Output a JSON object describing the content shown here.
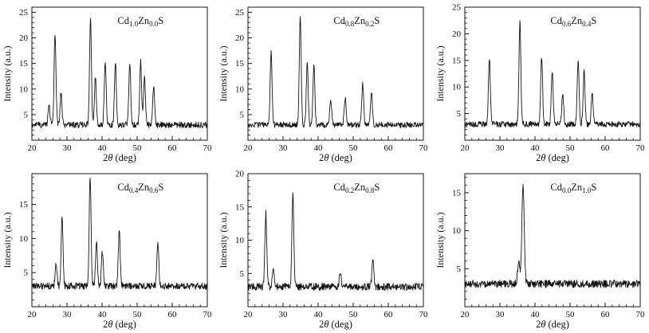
{
  "page": {
    "background": "#ffffff",
    "line_color": "#141414"
  },
  "axes": {
    "xlabel": "2θ (deg)",
    "xlabel_parts": {
      "pre": "2",
      "theta": "θ",
      "post": "(deg)"
    },
    "ylabel": "Intensity (a.u.)"
  },
  "chart_data": [
    {
      "type": "line",
      "title": "Cd1.0Zn0.0S",
      "label_parts": {
        "el1": "Cd",
        "sub1": "1.0",
        "el2": "Zn",
        "sub2": "0.0",
        "el3": "S"
      },
      "xlabel": "2θ (deg)",
      "ylabel": "Intensity (a.u.)",
      "xlim": [
        20,
        70
      ],
      "ylim": [
        0,
        26
      ],
      "xticks": [
        20,
        30,
        40,
        50,
        60,
        70
      ],
      "yticks": [
        5,
        10,
        15,
        20,
        25
      ],
      "baseline": 3.0,
      "noise_amp": 0.6,
      "peak_sigma": 0.27,
      "peaks": [
        {
          "two_theta": 24.9,
          "intensity": 6.5
        },
        {
          "two_theta": 26.6,
          "intensity": 21.0
        },
        {
          "two_theta": 28.3,
          "intensity": 9.0
        },
        {
          "two_theta": 36.7,
          "intensity": 23.5
        },
        {
          "two_theta": 38.1,
          "intensity": 12.5
        },
        {
          "two_theta": 40.9,
          "intensity": 15.5
        },
        {
          "two_theta": 43.8,
          "intensity": 15.2
        },
        {
          "two_theta": 47.9,
          "intensity": 15.0
        },
        {
          "two_theta": 51.0,
          "intensity": 15.4
        },
        {
          "two_theta": 52.1,
          "intensity": 12.0
        },
        {
          "two_theta": 54.7,
          "intensity": 10.5
        }
      ]
    },
    {
      "type": "line",
      "title": "Cd0.8Zn0.2S",
      "label_parts": {
        "el1": "Cd",
        "sub1": "0.8",
        "el2": "Zn",
        "sub2": "0.2",
        "el3": "S"
      },
      "xlabel": "2θ (deg)",
      "ylabel": "Intensity (a.u.)",
      "xlim": [
        20,
        70
      ],
      "ylim": [
        0,
        26
      ],
      "xticks": [
        20,
        30,
        40,
        50,
        60,
        70
      ],
      "yticks": [
        5,
        10,
        15,
        20,
        25
      ],
      "baseline": 3.0,
      "noise_amp": 0.55,
      "peak_sigma": 0.27,
      "peaks": [
        {
          "two_theta": 26.6,
          "intensity": 17.0
        },
        {
          "two_theta": 34.9,
          "intensity": 24.3
        },
        {
          "two_theta": 36.9,
          "intensity": 15.0
        },
        {
          "two_theta": 38.8,
          "intensity": 14.5
        },
        {
          "two_theta": 43.6,
          "intensity": 8.0
        },
        {
          "two_theta": 47.7,
          "intensity": 8.2
        },
        {
          "two_theta": 52.7,
          "intensity": 11.0
        },
        {
          "two_theta": 55.2,
          "intensity": 9.4
        }
      ]
    },
    {
      "type": "line",
      "title": "Cd0.6Zn0.4S",
      "label_parts": {
        "el1": "Cd",
        "sub1": "0.6",
        "el2": "Zn",
        "sub2": "0.4",
        "el3": "S"
      },
      "xlabel": "2θ (deg)",
      "ylabel": "Intensity (a.u.)",
      "xlim": [
        20,
        70
      ],
      "ylim": [
        0,
        25
      ],
      "xticks": [
        20,
        30,
        40,
        50,
        60,
        70
      ],
      "yticks": [
        5,
        10,
        15,
        20,
        25
      ],
      "baseline": 3.0,
      "noise_amp": 0.55,
      "peak_sigma": 0.27,
      "peaks": [
        {
          "two_theta": 27.0,
          "intensity": 15.2
        },
        {
          "two_theta": 35.7,
          "intensity": 22.0
        },
        {
          "two_theta": 41.9,
          "intensity": 15.8
        },
        {
          "two_theta": 44.9,
          "intensity": 13.2
        },
        {
          "two_theta": 47.9,
          "intensity": 8.5
        },
        {
          "two_theta": 52.3,
          "intensity": 15.0
        },
        {
          "two_theta": 54.0,
          "intensity": 13.0
        },
        {
          "two_theta": 56.3,
          "intensity": 9.0
        }
      ]
    },
    {
      "type": "line",
      "title": "Cd0.4Zn0.6S",
      "label_parts": {
        "el1": "Cd",
        "sub1": "0.4",
        "el2": "Zn",
        "sub2": "0.6",
        "el3": "S"
      },
      "xlabel": "2θ (deg)",
      "ylabel": "Intensity (a.u.)",
      "xlim": [
        20,
        70
      ],
      "ylim": [
        0,
        19.5
      ],
      "xticks": [
        20,
        30,
        40,
        50,
        60,
        70
      ],
      "yticks": [
        5,
        10,
        15
      ],
      "baseline": 3.0,
      "noise_amp": 0.5,
      "peak_sigma": 0.27,
      "peaks": [
        {
          "two_theta": 26.9,
          "intensity": 6.5
        },
        {
          "two_theta": 28.6,
          "intensity": 13.0
        },
        {
          "two_theta": 36.6,
          "intensity": 19.0
        },
        {
          "two_theta": 38.4,
          "intensity": 9.5
        },
        {
          "two_theta": 40.1,
          "intensity": 8.0
        },
        {
          "two_theta": 44.9,
          "intensity": 11.0
        },
        {
          "two_theta": 55.9,
          "intensity": 9.2
        }
      ]
    },
    {
      "type": "line",
      "title": "Cd0.2Zn0.8S",
      "label_parts": {
        "el1": "Cd",
        "sub1": "0.2",
        "el2": "Zn",
        "sub2": "0.8",
        "el3": "S"
      },
      "xlabel": "2θ (deg)",
      "ylabel": "Intensity (a.u.)",
      "xlim": [
        20,
        70
      ],
      "ylim": [
        0,
        20
      ],
      "xticks": [
        20,
        30,
        40,
        50,
        60,
        70
      ],
      "yticks": [
        5,
        10,
        15,
        20
      ],
      "baseline": 3.0,
      "noise_amp": 0.55,
      "peak_sigma": 0.27,
      "peaks": [
        {
          "two_theta": 25.1,
          "intensity": 14.0
        },
        {
          "two_theta": 27.2,
          "intensity": 5.5
        },
        {
          "two_theta": 32.8,
          "intensity": 17.2
        },
        {
          "two_theta": 46.3,
          "intensity": 5.2
        },
        {
          "two_theta": 55.6,
          "intensity": 6.8
        }
      ]
    },
    {
      "type": "line",
      "title": "Cd0.0Zn1.0S",
      "label_parts": {
        "el1": "Cd",
        "sub1": "0.0",
        "el2": "Zn",
        "sub2": "1.0",
        "el3": "S"
      },
      "xlabel": "2θ (deg)",
      "ylabel": "Intensity (a.u.)",
      "xlim": [
        20,
        70
      ],
      "ylim": [
        0,
        17.5
      ],
      "xticks": [
        20,
        30,
        40,
        50,
        60,
        70
      ],
      "yticks": [
        5,
        10,
        15
      ],
      "baseline": 3.0,
      "noise_amp": 0.5,
      "peak_sigma": 0.33,
      "peaks": [
        {
          "two_theta": 35.4,
          "intensity": 5.8
        },
        {
          "two_theta": 36.6,
          "intensity": 16.3
        }
      ]
    }
  ]
}
